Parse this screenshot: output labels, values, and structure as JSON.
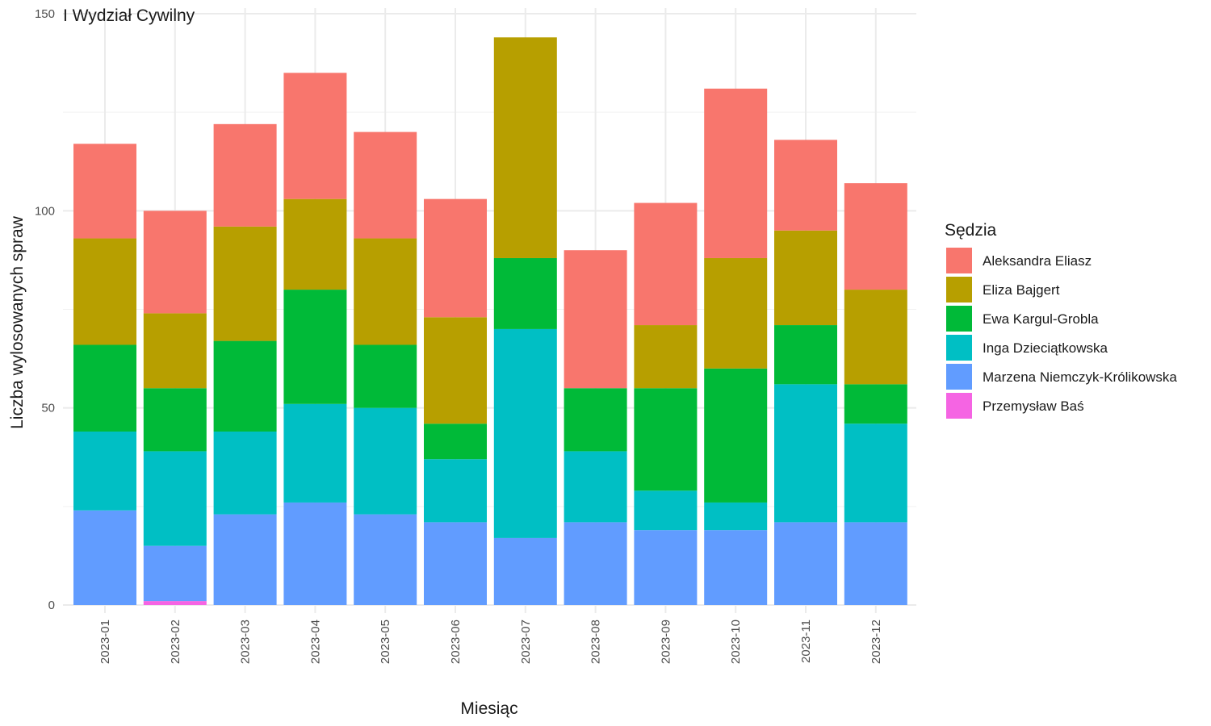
{
  "chart_data": {
    "type": "bar",
    "stacked": true,
    "title": "I Wydział Cywilny",
    "xlabel": "Miesiąc",
    "ylabel": "Liczba wylosowanych spraw",
    "ylim": [
      0,
      150
    ],
    "yticks": [
      0,
      50,
      100,
      150
    ],
    "grid": true,
    "legend_title": "Sędzia",
    "legend_position": "right",
    "categories": [
      "2023-01",
      "2023-02",
      "2023-03",
      "2023-04",
      "2023-05",
      "2023-06",
      "2023-07",
      "2023-08",
      "2023-09",
      "2023-10",
      "2023-11",
      "2023-12"
    ],
    "series": [
      {
        "name": "Aleksandra Eliasz",
        "color": "#F8766D",
        "values": [
          24,
          26,
          26,
          32,
          27,
          30,
          0,
          35,
          31,
          43,
          23,
          27
        ]
      },
      {
        "name": "Eliza Bajgert",
        "color": "#B79F00",
        "values": [
          27,
          19,
          29,
          23,
          27,
          27,
          56,
          0,
          16,
          28,
          24,
          24
        ]
      },
      {
        "name": "Ewa Kargul-Grobla",
        "color": "#00BA38",
        "values": [
          22,
          16,
          23,
          29,
          16,
          9,
          18,
          16,
          26,
          34,
          15,
          10
        ]
      },
      {
        "name": "Inga Dzieciątkowska",
        "color": "#00BFC4",
        "values": [
          20,
          24,
          21,
          25,
          27,
          16,
          53,
          18,
          10,
          7,
          35,
          25
        ]
      },
      {
        "name": "Marzena Niemczyk-Królikowska",
        "color": "#619CFF",
        "values": [
          24,
          14,
          23,
          26,
          23,
          21,
          17,
          21,
          19,
          19,
          21,
          21
        ]
      },
      {
        "name": "Przemysław Baś",
        "color": "#F564E3",
        "values": [
          0,
          1,
          0,
          0,
          0,
          0,
          0,
          0,
          0,
          0,
          0,
          0
        ]
      }
    ]
  }
}
